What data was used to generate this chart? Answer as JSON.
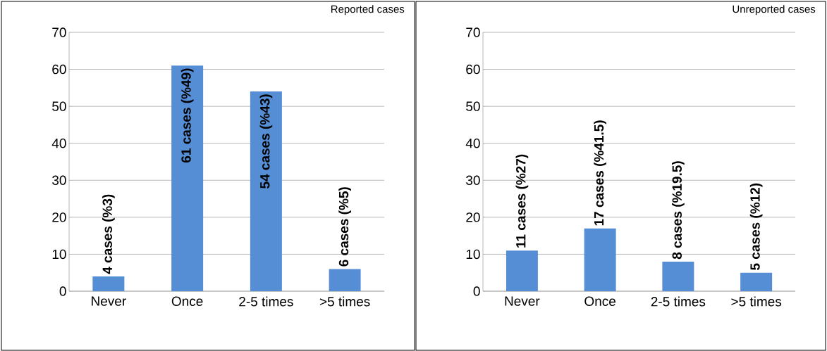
{
  "chart_data": [
    {
      "type": "bar",
      "title": "Reported cases",
      "categories": [
        "Never",
        "Once",
        "2-5 times",
        ">5 times"
      ],
      "values": [
        4,
        61,
        54,
        6
      ],
      "value_labels": [
        "4 cases (%3)",
        "61 cases (%49)",
        "54 cases (%43)",
        "6 cases (%5)"
      ],
      "color": "#558ed5",
      "ylim": [
        0,
        70
      ],
      "yticks": [
        0,
        10,
        20,
        30,
        40,
        50,
        60,
        70
      ],
      "grid": "y"
    },
    {
      "type": "bar",
      "title": "Unreported cases",
      "categories": [
        "Never",
        "Once",
        "2-5 times",
        ">5 times"
      ],
      "values": [
        11,
        17,
        8,
        5
      ],
      "value_labels": [
        "11 cases (%27)",
        "17 cases (%41.5)",
        "8 cases (%19.5)",
        "5 cases (%12)"
      ],
      "color": "#558ed5",
      "ylim": [
        0,
        70
      ],
      "yticks": [
        0,
        10,
        20,
        30,
        40,
        50,
        60,
        70
      ],
      "grid": "y"
    }
  ]
}
